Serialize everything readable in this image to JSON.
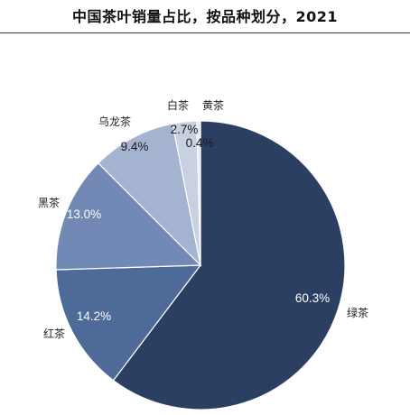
{
  "title": "中国茶叶销量占比，按品种划分，2021",
  "chart_data": {
    "type": "pie",
    "title": "中国茶叶销量占比，按品种划分，2021",
    "categories": [
      "绿茶",
      "红茶",
      "黑茶",
      "乌龙茶",
      "白茶",
      "黄茶"
    ],
    "values": [
      60.3,
      14.2,
      13.0,
      9.4,
      2.7,
      0.4
    ],
    "labels": [
      "60.3%",
      "14.2%",
      "13.0%",
      "9.4%",
      "2.7%",
      "0.4%"
    ],
    "colors": [
      "#2b3f63",
      "#4e6a99",
      "#7289b6",
      "#a4b3d0",
      "#c8d1e2",
      "#e3e8f1"
    ],
    "label_colors": [
      "#ffffff",
      "#ffffff",
      "#ffffff",
      "#1a1a1a",
      "#1a1a1a",
      "#1a1a1a"
    ],
    "start_angle": "12 o'clock",
    "direction": "clockwise",
    "legend": "none (category labels beside slices)"
  }
}
